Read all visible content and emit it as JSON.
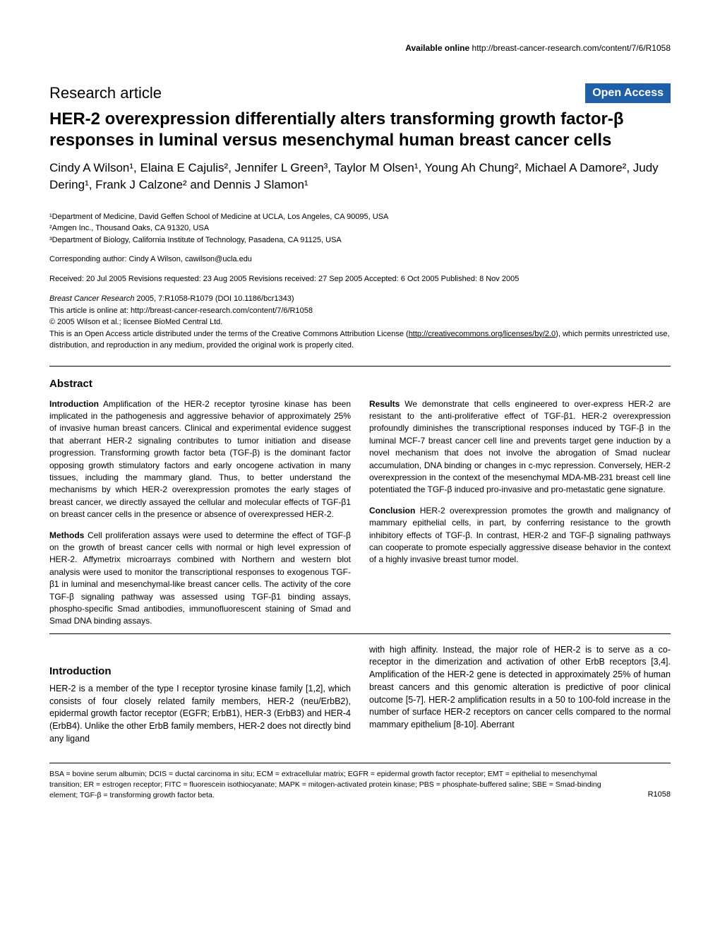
{
  "header": {
    "available_online": "Available online",
    "url": "http://breast-cancer-research.com/content/7/6/R1058"
  },
  "article": {
    "type": "Research article",
    "open_access_label": "Open Access",
    "title": "HER-2 overexpression differentially alters transforming growth factor-β responses in luminal versus mesenchymal human breast cancer cells",
    "authors": "Cindy A Wilson¹, Elaina E Cajulis², Jennifer L Green³, Taylor M Olsen¹, Young Ah Chung², Michael A Damore², Judy Dering¹, Frank J Calzone² and Dennis J Slamon¹",
    "affiliations": [
      "¹Department of Medicine, David Geffen School of Medicine at UCLA, Los Angeles, CA 90095, USA",
      "²Amgen Inc., Thousand Oaks, CA 91320, USA",
      "³Department of Biology, California Institute of Technology, Pasadena, CA 91125, USA"
    ],
    "corresponding": "Corresponding author: Cindy A Wilson, cawilson@ucla.edu",
    "dates": "Received: 20 Jul 2005  Revisions requested: 23 Aug 2005  Revisions received: 27 Sep 2005  Accepted: 6 Oct 2005  Published: 8 Nov 2005",
    "citation": {
      "journal": "Breast Cancer Research",
      "year_vol": "2005, 7:R1058-R1079 (DOI 10.1186/bcr1343)",
      "online_prefix": "This article is online at: ",
      "online_url": "http://breast-cancer-research.com/content/7/6/R1058",
      "copyright": "© 2005 Wilson et al.; licensee BioMed Central Ltd.",
      "license_prefix": "This is an Open Access article distributed under the terms of the Creative Commons Attribution License (",
      "license_url": "http://creativecommons.org/licenses/by/2.0",
      "license_suffix": "), which permits unrestricted use, distribution, and reproduction in any medium, provided the original work is properly cited."
    }
  },
  "abstract": {
    "heading": "Abstract",
    "paras": [
      {
        "label": "Introduction",
        "text": "Amplification of the HER-2 receptor tyrosine kinase has been implicated in the pathogenesis and aggressive behavior of approximately 25% of invasive human breast cancers. Clinical and experimental evidence suggest that aberrant HER-2 signaling contributes to tumor initiation and disease progression. Transforming growth factor beta (TGF-β) is the dominant factor opposing growth stimulatory factors and early oncogene activation in many tissues, including the mammary gland. Thus, to better understand the mechanisms by which HER-2 overexpression promotes the early stages of breast cancer, we directly assayed the cellular and molecular effects of TGF-β1 on breast cancer cells in the presence or absence of overexpressed HER-2."
      },
      {
        "label": "Methods",
        "text": "Cell proliferation assays were used to determine the effect of TGF-β on the growth of breast cancer cells with normal or high level expression of HER-2. Affymetrix microarrays combined with Northern and western blot analysis were used to monitor the transcriptional responses to exogenous TGF-β1 in luminal and mesenchymal-like breast cancer cells. The activity of the core TGF-β signaling pathway was assessed using TGF-β1 binding assays, phospho-specific Smad antibodies, immunofluorescent staining of Smad and Smad DNA binding assays."
      },
      {
        "label": "Results",
        "text": "We demonstrate that cells engineered to over-express HER-2 are resistant to the anti-proliferative effect of TGF-β1. HER-2 overexpression profoundly diminishes the transcriptional responses induced by TGF-β in the luminal MCF-7 breast cancer cell line and prevents target gene induction by a novel mechanism that does not involve the abrogation of Smad nuclear accumulation, DNA binding or changes in c-myc repression. Conversely, HER-2 overexpression in the context of the mesenchymal MDA-MB-231 breast cell line potentiated the TGF-β induced pro-invasive and pro-metastatic gene signature."
      },
      {
        "label": "Conclusion",
        "text": "HER-2 overexpression promotes the growth and malignancy of mammary epithelial cells, in part, by conferring resistance to the growth inhibitory effects of TGF-β. In contrast, HER-2 and TGF-β signaling pathways can cooperate to promote especially aggressive disease behavior in the context of a highly invasive breast tumor model."
      }
    ]
  },
  "intro": {
    "heading": "Introduction",
    "left_para": "HER-2 is a member of the type I receptor tyrosine kinase family [1,2], which consists of four closely related family members, HER-2 (neu/ErbB2), epidermal growth factor receptor (EGFR; ErbB1), HER-3 (ErbB3) and HER-4 (ErbB4). Unlike the other ErbB family members, HER-2 does not directly bind any ligand",
    "right_para": "with high affinity. Instead, the major role of HER-2 is to serve as a co-receptor in the dimerization and activation of other ErbB receptors [3,4]. Amplification of the HER-2 gene is detected in approximately 25% of human breast cancers and this genomic alteration is predictive of poor clinical outcome [5-7]. HER-2 amplification results in a 50 to 100-fold increase in the number of surface HER-2 receptors on cancer cells compared to the normal mammary epithelium [8-10]. Aberrant"
  },
  "footer": {
    "abbreviations": "BSA = bovine serum albumin; DCIS = ductal carcinoma in situ; ECM = extracellular matrix; EGFR = epidermal growth factor receptor; EMT = epithelial to mesenchymal transition; ER = estrogen receptor; FITC = fluorescein isothiocyanate; MAPK = mitogen-activated protein kinase; PBS = phosphate-buffered saline; SBE = Smad-binding element; TGF-β = transforming growth factor beta.",
    "page_number": "R1058"
  },
  "style": {
    "badge_bg": "#1e5fa8",
    "badge_fg": "#ffffff",
    "body_fontsize": 13,
    "title_fontsize": 24,
    "authors_fontsize": 17
  }
}
